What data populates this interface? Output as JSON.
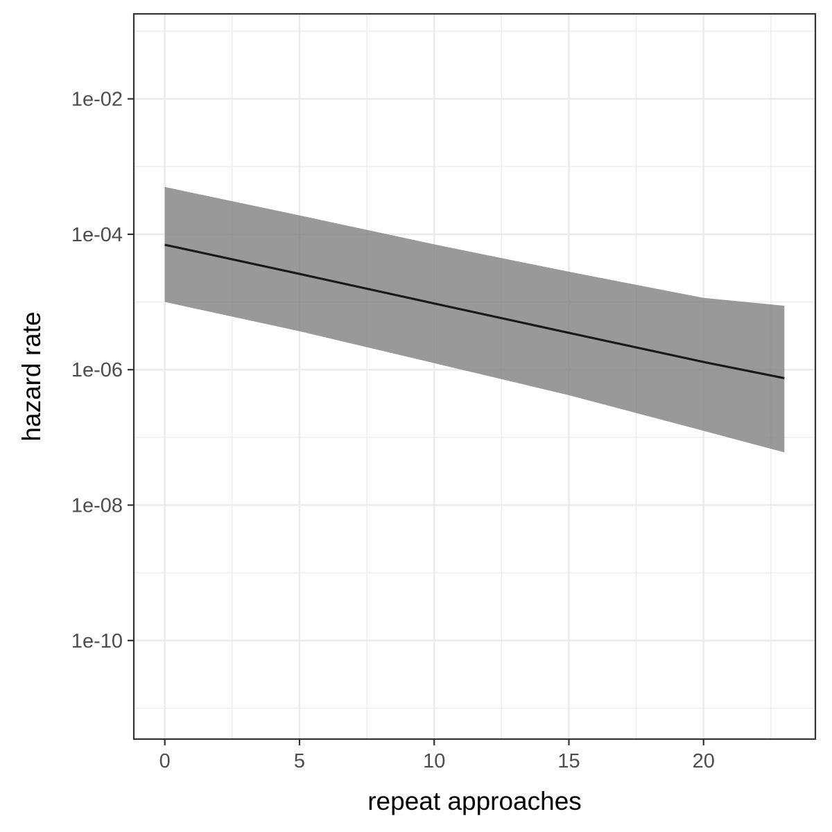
{
  "chart_data": {
    "type": "line",
    "title": "",
    "xlabel": "repeat approaches",
    "ylabel": "hazard rate",
    "xlim": [
      -1.15,
      24.15
    ],
    "ylim": [
      3.5e-12,
      0.18
    ],
    "log_y": true,
    "grid": true,
    "legend": "none",
    "x_ticks": [
      0,
      5,
      10,
      15,
      20
    ],
    "y_ticks": [
      1e-10,
      1e-08,
      1e-06,
      0.0001,
      0.01
    ],
    "y_tick_labels": [
      "1e-10",
      "1e-08",
      "1e-06",
      "1e-04",
      "1e-02"
    ],
    "series": [
      {
        "x": [
          0,
          5,
          10,
          15,
          20,
          23
        ],
        "y": [
          7e-05,
          2.6e-05,
          9.5e-06,
          3.5e-06,
          1.3e-06,
          7.5e-07
        ],
        "ymin": [
          1e-05,
          3.7e-06,
          1.25e-06,
          4.2e-07,
          1.25e-07,
          6e-08
        ],
        "ymax": [
          0.0005,
          0.00019,
          7.1e-05,
          2.8e-05,
          1.15e-05,
          8.8e-06
        ]
      }
    ],
    "colors": {
      "line": "#1a1a1a",
      "ribbon": "#808080",
      "grid": "#ebebeb",
      "panel_border": "#333333",
      "tick_text": "#4d4d4d"
    }
  }
}
